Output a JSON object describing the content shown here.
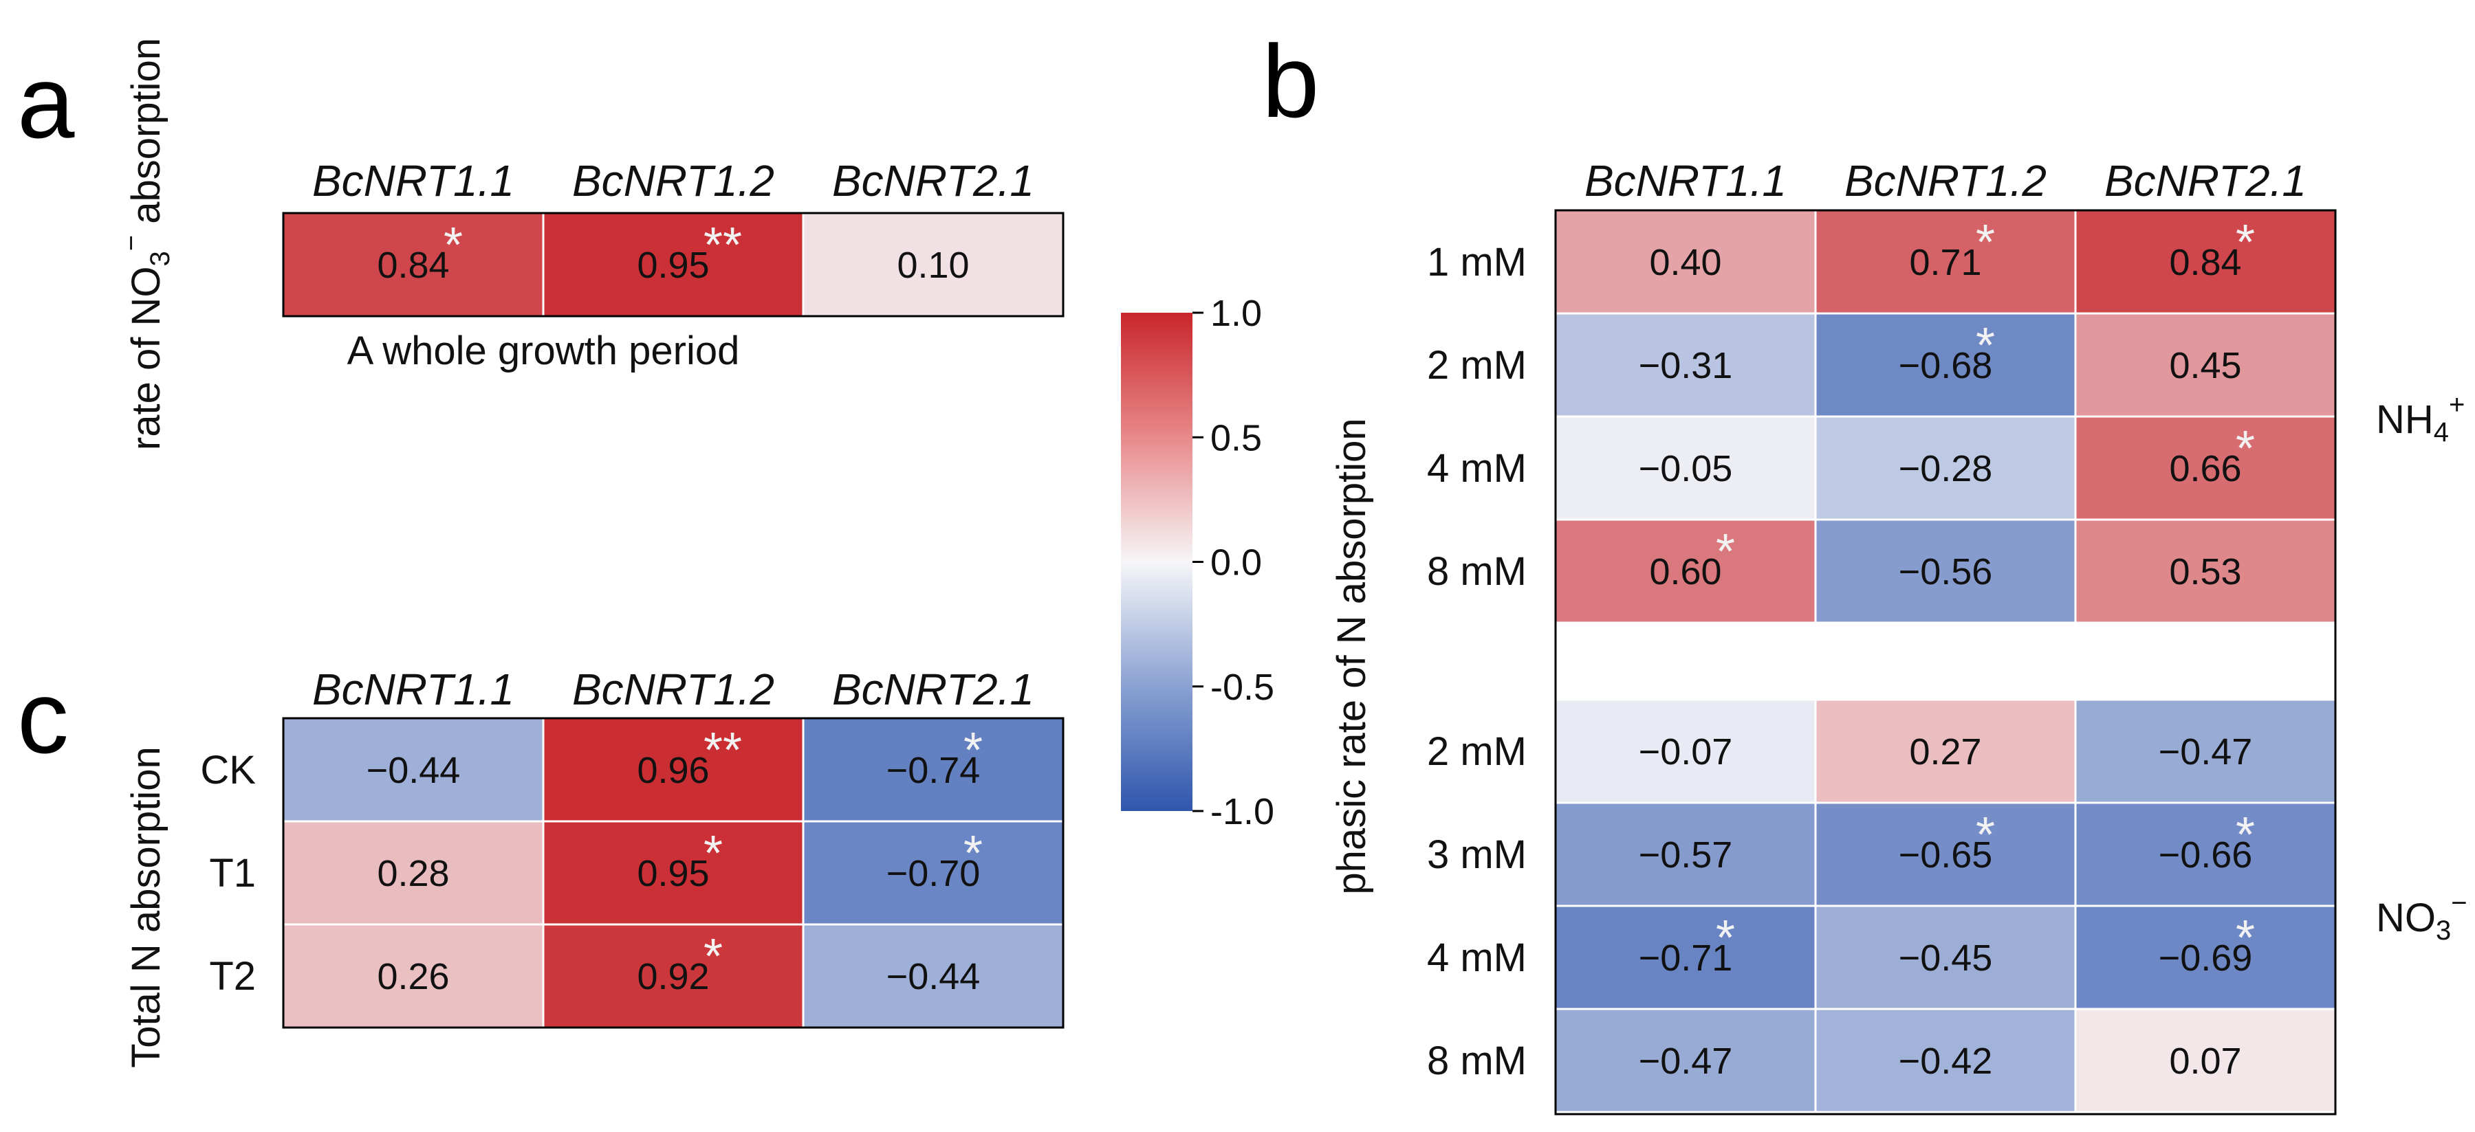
{
  "panels": {
    "a": {
      "letter": "a",
      "ylabel_pre": "rate of NO",
      "ylabel_sub": "3",
      "ylabel_sup": "−",
      "ylabel_post": " absorption",
      "xlabel": "A whole growth period"
    },
    "b": {
      "letter": "b",
      "ylabel": "phasic rate of N absorption",
      "group_nh4": {
        "base": "NH",
        "sub": "4",
        "sup": "+"
      },
      "group_no3": {
        "base": "NO",
        "sub": "3",
        "sup": "−"
      }
    },
    "c": {
      "letter": "c",
      "ylabel": "Total N absorption"
    }
  },
  "colorbar": {
    "ticks": [
      "1.0",
      "0.5",
      "0.0",
      "-0.5",
      "-1.0"
    ]
  },
  "chart_data": [
    {
      "type": "heatmap",
      "panel": "a",
      "title": "",
      "columns": [
        "BcNRT1.1",
        "BcNRT1.2",
        "BcNRT2.1"
      ],
      "rows": [
        ""
      ],
      "values": [
        [
          0.84,
          0.95,
          0.1
        ]
      ],
      "labels": [
        [
          "0.84",
          "0.95",
          "0.10"
        ]
      ],
      "significance": [
        [
          "*",
          "**",
          ""
        ]
      ],
      "vmin": -1.0,
      "vmax": 1.0
    },
    {
      "type": "heatmap",
      "panel": "b",
      "title": "",
      "columns": [
        "BcNRT1.1",
        "BcNRT1.2",
        "BcNRT2.1"
      ],
      "groups": [
        {
          "name": "NH4+",
          "rows": [
            "1 mM",
            "2 mM",
            "4 mM",
            "8 mM"
          ],
          "values": [
            [
              0.4,
              0.71,
              0.84
            ],
            [
              -0.31,
              -0.68,
              0.45
            ],
            [
              -0.05,
              -0.28,
              0.66
            ],
            [
              0.6,
              -0.56,
              0.53
            ]
          ],
          "labels": [
            [
              "0.40",
              "0.71",
              "0.84"
            ],
            [
              "−0.31",
              "−0.68",
              "0.45"
            ],
            [
              "−0.05",
              "−0.28",
              "0.66"
            ],
            [
              "0.60",
              "−0.56",
              "0.53"
            ]
          ],
          "significance": [
            [
              "",
              "*",
              "*"
            ],
            [
              "",
              "*",
              ""
            ],
            [
              "",
              "",
              "*"
            ],
            [
              "*",
              "",
              ""
            ]
          ]
        },
        {
          "name": "NO3-",
          "rows": [
            "2 mM",
            "3 mM",
            "4 mM",
            "8 mM"
          ],
          "values": [
            [
              -0.07,
              0.27,
              -0.47
            ],
            [
              -0.57,
              -0.65,
              -0.66
            ],
            [
              -0.71,
              -0.45,
              -0.69
            ],
            [
              -0.47,
              -0.42,
              0.07
            ]
          ],
          "labels": [
            [
              "−0.07",
              "0.27",
              "−0.47"
            ],
            [
              "−0.57",
              "−0.65",
              "−0.66"
            ],
            [
              "−0.71",
              "−0.45",
              "−0.69"
            ],
            [
              "−0.47",
              "−0.42",
              "0.07"
            ]
          ],
          "significance": [
            [
              "",
              "",
              ""
            ],
            [
              "",
              "*",
              "*"
            ],
            [
              "*",
              "",
              "*"
            ],
            [
              "",
              "",
              ""
            ]
          ]
        }
      ],
      "vmin": -1.0,
      "vmax": 1.0
    },
    {
      "type": "heatmap",
      "panel": "c",
      "title": "",
      "columns": [
        "BcNRT1.1",
        "BcNRT1.2",
        "BcNRT2.1"
      ],
      "rows": [
        "CK",
        "T1",
        "T2"
      ],
      "values": [
        [
          -0.44,
          0.96,
          -0.74
        ],
        [
          0.28,
          0.95,
          -0.7
        ],
        [
          0.26,
          0.92,
          -0.44
        ]
      ],
      "labels": [
        [
          "−0.44",
          "0.96",
          "−0.74"
        ],
        [
          "0.28",
          "0.95",
          "−0.70"
        ],
        [
          "0.26",
          "0.92",
          "−0.44"
        ]
      ],
      "significance": [
        [
          "",
          "**",
          "*"
        ],
        [
          "",
          "*",
          "*"
        ],
        [
          "",
          "*",
          ""
        ]
      ],
      "vmin": -1.0,
      "vmax": 1.0
    }
  ]
}
